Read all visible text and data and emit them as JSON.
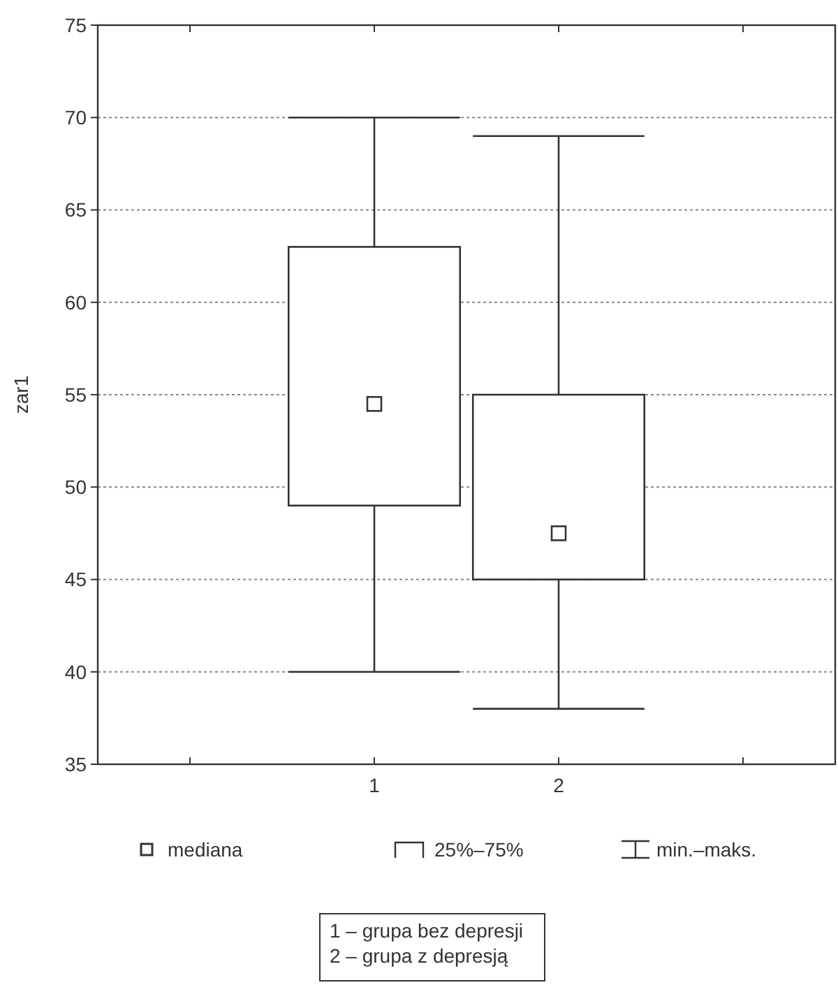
{
  "chart_data": {
    "type": "box",
    "ylabel": "zar1",
    "categories": [
      null,
      "1",
      "2",
      null
    ],
    "boxes": [
      null,
      {
        "low": 40,
        "q1": 49,
        "median": 54.5,
        "q3": 63,
        "high": 70
      },
      {
        "low": 38,
        "q1": 45,
        "median": 47.5,
        "q3": 55,
        "high": 69
      },
      null
    ],
    "ylim": [
      35,
      75
    ],
    "yticks": [
      35,
      40,
      45,
      50,
      55,
      60,
      65,
      70,
      75
    ],
    "grid": "y",
    "marker": "square",
    "annotations": [
      "mediana",
      "25%–75%",
      "min.–maks.",
      "1 – grupa bez depresji",
      "2 – grupa z depresją"
    ]
  }
}
